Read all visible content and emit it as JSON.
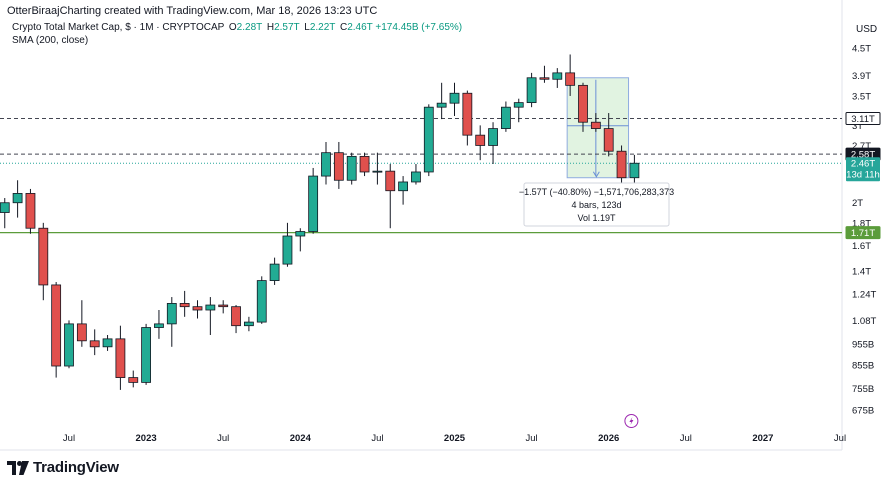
{
  "header": {
    "credit": "OtterBiraajCharting created with TradingView.com, Mar 18, 2026 13:23 UTC"
  },
  "legend": {
    "symbol": "Crypto Total Market Cap, $ · 1M · CRYPTOCAP",
    "open_label": "O",
    "open": "2.28T",
    "high_label": "H",
    "high": "2.57T",
    "low_label": "L",
    "low": "2.22T",
    "close_label": "C",
    "close": "2.46T",
    "change": "+174.45B (+7.65%)",
    "indicator": "SMA (200, close)"
  },
  "currency": "USD",
  "logo": {
    "text": "TradingView"
  },
  "colors": {
    "up": "#26a69a",
    "down": "#ef5350",
    "candle_up": "#22ab94",
    "candle_down": "#e0504d",
    "border": "#131722",
    "sma": "#5b9c3b",
    "range_fill": "#d7efd8",
    "range_border": "#6a8fd6",
    "dash": "#434651"
  },
  "chart_data": {
    "type": "candlestick",
    "title": "Crypto Total Market Cap, $ · 1M · CRYPTOCAP",
    "y_scale": "log",
    "ylim": [
      0.62,
      5.2
    ],
    "y_unit": "T",
    "y_ticks": [
      "4.5T",
      "3.9T",
      "3.5T",
      "3T",
      "2.7T",
      "2T",
      "1.8T",
      "1.6T",
      "1.4T",
      "1.24T",
      "1.08T",
      "955B",
      "855B",
      "755B",
      "675B"
    ],
    "y_tick_values": [
      4.5,
      3.9,
      3.5,
      3.0,
      2.7,
      2.0,
      1.8,
      1.6,
      1.4,
      1.24,
      1.08,
      0.955,
      0.855,
      0.755,
      0.675
    ],
    "x_ticks": [
      "Jul",
      "2023",
      "Jul",
      "2024",
      "Jul",
      "2025",
      "Jul",
      "2026",
      "Jul",
      "2027",
      "Jul"
    ],
    "x_tick_months": [
      "2022-07",
      "2023-01",
      "2023-07",
      "2024-01",
      "2024-07",
      "2025-01",
      "2025-07",
      "2026-01",
      "2026-07",
      "2027-01",
      "2027-07"
    ],
    "candles": [
      {
        "month": "2021-12",
        "o": 2.25,
        "h": 2.55,
        "l": 1.95,
        "c": 2.0
      },
      {
        "month": "2022-01",
        "o": 2.0,
        "h": 2.2,
        "l": 1.65,
        "c": 1.9
      },
      {
        "month": "2022-02",
        "o": 1.9,
        "h": 2.05,
        "l": 1.75,
        "c": 2.0
      },
      {
        "month": "2022-03",
        "o": 2.0,
        "h": 2.25,
        "l": 1.85,
        "c": 2.1
      },
      {
        "month": "2022-04",
        "o": 2.1,
        "h": 2.15,
        "l": 1.7,
        "c": 1.75
      },
      {
        "month": "2022-05",
        "o": 1.75,
        "h": 1.8,
        "l": 1.2,
        "c": 1.3
      },
      {
        "month": "2022-06",
        "o": 1.3,
        "h": 1.32,
        "l": 0.8,
        "c": 0.85
      },
      {
        "month": "2022-07",
        "o": 0.85,
        "h": 1.08,
        "l": 0.84,
        "c": 1.06
      },
      {
        "month": "2022-08",
        "o": 1.06,
        "h": 1.2,
        "l": 0.94,
        "c": 0.97
      },
      {
        "month": "2022-09",
        "o": 0.97,
        "h": 1.03,
        "l": 0.9,
        "c": 0.94
      },
      {
        "month": "2022-10",
        "o": 0.94,
        "h": 1.0,
        "l": 0.92,
        "c": 0.98
      },
      {
        "month": "2022-11",
        "o": 0.98,
        "h": 1.05,
        "l": 0.75,
        "c": 0.8
      },
      {
        "month": "2022-12",
        "o": 0.8,
        "h": 0.83,
        "l": 0.76,
        "c": 0.78
      },
      {
        "month": "2023-01",
        "o": 0.78,
        "h": 1.06,
        "l": 0.77,
        "c": 1.04
      },
      {
        "month": "2023-02",
        "o": 1.04,
        "h": 1.14,
        "l": 0.98,
        "c": 1.06
      },
      {
        "month": "2023-03",
        "o": 1.06,
        "h": 1.22,
        "l": 0.94,
        "c": 1.18
      },
      {
        "month": "2023-04",
        "o": 1.18,
        "h": 1.26,
        "l": 1.1,
        "c": 1.16
      },
      {
        "month": "2023-05",
        "o": 1.16,
        "h": 1.2,
        "l": 1.09,
        "c": 1.14
      },
      {
        "month": "2023-06",
        "o": 1.14,
        "h": 1.22,
        "l": 1.0,
        "c": 1.17
      },
      {
        "month": "2023-07",
        "o": 1.17,
        "h": 1.2,
        "l": 1.12,
        "c": 1.16
      },
      {
        "month": "2023-08",
        "o": 1.16,
        "h": 1.17,
        "l": 1.01,
        "c": 1.05
      },
      {
        "month": "2023-09",
        "o": 1.05,
        "h": 1.1,
        "l": 1.02,
        "c": 1.07
      },
      {
        "month": "2023-10",
        "o": 1.07,
        "h": 1.36,
        "l": 1.06,
        "c": 1.33
      },
      {
        "month": "2023-11",
        "o": 1.33,
        "h": 1.5,
        "l": 1.3,
        "c": 1.45
      },
      {
        "month": "2023-12",
        "o": 1.45,
        "h": 1.8,
        "l": 1.43,
        "c": 1.68
      },
      {
        "month": "2024-01",
        "o": 1.68,
        "h": 1.75,
        "l": 1.55,
        "c": 1.72
      },
      {
        "month": "2024-02",
        "o": 1.72,
        "h": 2.4,
        "l": 1.7,
        "c": 2.3
      },
      {
        "month": "2024-03",
        "o": 2.3,
        "h": 2.75,
        "l": 2.2,
        "c": 2.6
      },
      {
        "month": "2024-04",
        "o": 2.6,
        "h": 2.75,
        "l": 2.15,
        "c": 2.25
      },
      {
        "month": "2024-05",
        "o": 2.25,
        "h": 2.6,
        "l": 2.2,
        "c": 2.55
      },
      {
        "month": "2024-06",
        "o": 2.55,
        "h": 2.6,
        "l": 2.3,
        "c": 2.35
      },
      {
        "month": "2024-07",
        "o": 2.35,
        "h": 2.6,
        "l": 2.2,
        "c": 2.36
      },
      {
        "month": "2024-08",
        "o": 2.36,
        "h": 2.45,
        "l": 1.75,
        "c": 2.13
      },
      {
        "month": "2024-09",
        "o": 2.13,
        "h": 2.3,
        "l": 1.98,
        "c": 2.23
      },
      {
        "month": "2024-10",
        "o": 2.23,
        "h": 2.45,
        "l": 2.2,
        "c": 2.35
      },
      {
        "month": "2024-11",
        "o": 2.35,
        "h": 3.35,
        "l": 2.3,
        "c": 3.3
      },
      {
        "month": "2024-12",
        "o": 3.3,
        "h": 3.75,
        "l": 3.1,
        "c": 3.37
      },
      {
        "month": "2025-01",
        "o": 3.37,
        "h": 3.75,
        "l": 3.15,
        "c": 3.55
      },
      {
        "month": "2025-02",
        "o": 3.55,
        "h": 3.6,
        "l": 2.7,
        "c": 2.85
      },
      {
        "month": "2025-03",
        "o": 2.85,
        "h": 3.0,
        "l": 2.5,
        "c": 2.7
      },
      {
        "month": "2025-04",
        "o": 2.7,
        "h": 3.05,
        "l": 2.45,
        "c": 2.95
      },
      {
        "month": "2025-05",
        "o": 2.95,
        "h": 3.4,
        "l": 2.9,
        "c": 3.3
      },
      {
        "month": "2025-06",
        "o": 3.3,
        "h": 3.45,
        "l": 3.05,
        "c": 3.38
      },
      {
        "month": "2025-07",
        "o": 3.38,
        "h": 3.95,
        "l": 3.3,
        "c": 3.85
      },
      {
        "month": "2025-08",
        "o": 3.85,
        "h": 4.1,
        "l": 3.75,
        "c": 3.82
      },
      {
        "month": "2025-09",
        "o": 3.82,
        "h": 4.05,
        "l": 3.65,
        "c": 3.95
      },
      {
        "month": "2025-10",
        "o": 3.95,
        "h": 4.35,
        "l": 3.5,
        "c": 3.7
      },
      {
        "month": "2025-11",
        "o": 3.7,
        "h": 3.75,
        "l": 2.9,
        "c": 3.05
      },
      {
        "month": "2025-12",
        "o": 3.05,
        "h": 3.2,
        "l": 2.9,
        "c": 2.95
      },
      {
        "month": "2026-01",
        "o": 2.95,
        "h": 3.2,
        "l": 2.55,
        "c": 2.62
      },
      {
        "month": "2026-02",
        "o": 2.62,
        "h": 2.7,
        "l": 2.2,
        "c": 2.28
      },
      {
        "month": "2026-03",
        "o": 2.28,
        "h": 2.57,
        "l": 2.22,
        "c": 2.46
      }
    ],
    "sma": {
      "name": "SMA (200, close)",
      "value": 1.71
    },
    "levels": [
      {
        "value": 3.11,
        "label": "3.11T"
      },
      {
        "value": 2.58,
        "label": "2.58T"
      }
    ],
    "current": {
      "label": "2.46T",
      "countdown": "13d 11h",
      "value": 2.46
    },
    "sma_label": "1.71T",
    "measure": {
      "line1": "−1.57T (−40.80%) −1,571,706,283,373",
      "line2": "4 bars, 123d",
      "line3": "Vol 1.19T",
      "from_month": "2025-10",
      "to_month": "2026-02",
      "from_value": 3.85,
      "to_value": 2.28
    }
  }
}
